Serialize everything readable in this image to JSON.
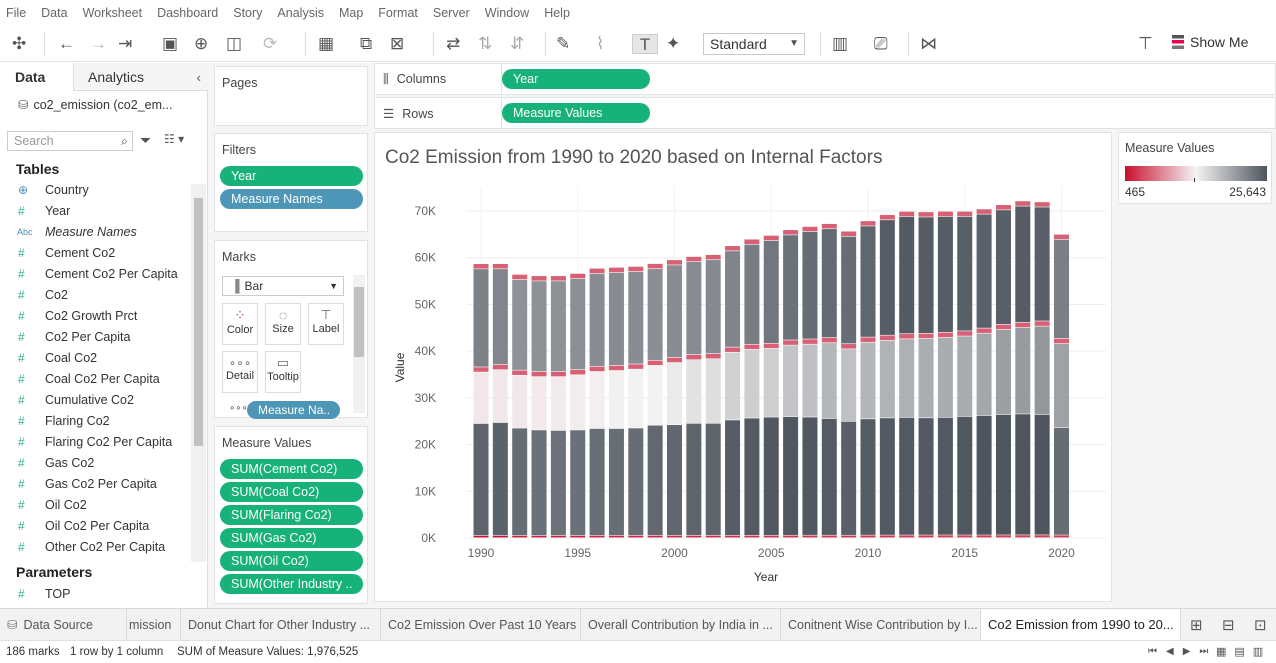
{
  "menu": [
    "File",
    "Data",
    "Worksheet",
    "Dashboard",
    "Story",
    "Analysis",
    "Map",
    "Format",
    "Server",
    "Window",
    "Help"
  ],
  "toolbar": {
    "fit_mode": "Standard",
    "show_me": "Show Me"
  },
  "left_pane": {
    "tab_data": "Data",
    "tab_analytics": "Analytics",
    "datasource": "co2_emission (co2_em...",
    "search_placeholder": "Search",
    "tables_header": "Tables",
    "fields": [
      {
        "type": "globe",
        "name": "Country"
      },
      {
        "type": "#",
        "name": "Year"
      },
      {
        "type": "Abc",
        "name": "Measure Names",
        "italic": true
      },
      {
        "type": "#",
        "name": "Cement Co2"
      },
      {
        "type": "#",
        "name": "Cement Co2 Per Capita"
      },
      {
        "type": "#",
        "name": "Co2"
      },
      {
        "type": "#",
        "name": "Co2 Growth Prct"
      },
      {
        "type": "#",
        "name": "Co2 Per Capita"
      },
      {
        "type": "#",
        "name": "Coal Co2"
      },
      {
        "type": "#",
        "name": "Coal Co2 Per Capita"
      },
      {
        "type": "#",
        "name": "Cumulative Co2"
      },
      {
        "type": "#",
        "name": "Flaring Co2"
      },
      {
        "type": "#",
        "name": "Flaring Co2 Per Capita"
      },
      {
        "type": "#",
        "name": "Gas Co2"
      },
      {
        "type": "#",
        "name": "Gas Co2 Per Capita"
      },
      {
        "type": "#",
        "name": "Oil Co2"
      },
      {
        "type": "#",
        "name": "Oil Co2 Per Capita"
      },
      {
        "type": "#",
        "name": "Other Co2 Per Capita"
      }
    ],
    "parameters_header": "Parameters",
    "parameters": [
      {
        "type": "#",
        "name": "TOP"
      }
    ]
  },
  "pages": {
    "title": "Pages"
  },
  "filters": {
    "title": "Filters",
    "items": [
      "Year",
      "Measure Names"
    ]
  },
  "marks": {
    "title": "Marks",
    "type": "Bar",
    "buttons": [
      "Color",
      "Size",
      "Label",
      "Detail",
      "Tooltip"
    ],
    "pill": "Measure Na.."
  },
  "measure_values": {
    "title": "Measure Values",
    "items": [
      "SUM(Cement Co2)",
      "SUM(Coal Co2)",
      "SUM(Flaring Co2)",
      "SUM(Gas Co2)",
      "SUM(Oil Co2)",
      "SUM(Other Industry .."
    ]
  },
  "columns": {
    "label": "Columns",
    "pill": "Year"
  },
  "rows": {
    "label": "Rows",
    "pill": "Measure Values"
  },
  "legend": {
    "title": "Measure Values",
    "min": "465",
    "max": "25,643",
    "colors": [
      "#c8102e",
      "#f4f4f4",
      "#4e555e"
    ]
  },
  "chart_data": {
    "type": "bar",
    "title": "Co2 Emission from 1990 to 2020 based on Internal Factors",
    "xlabel": "Year",
    "ylabel": "Value",
    "ylim": [
      0,
      73000
    ],
    "yticks": [
      0,
      10000,
      20000,
      30000,
      40000,
      50000,
      60000,
      70000
    ],
    "ytick_labels": [
      "0K",
      "10K",
      "20K",
      "30K",
      "40K",
      "50K",
      "60K",
      "70K"
    ],
    "xtick_years": [
      1990,
      1995,
      2000,
      2005,
      2010,
      2015,
      2020
    ],
    "categories": [
      1990,
      1991,
      1992,
      1993,
      1994,
      1995,
      1996,
      1997,
      1998,
      1999,
      2000,
      2001,
      2002,
      2003,
      2004,
      2005,
      2006,
      2007,
      2008,
      2009,
      2010,
      2011,
      2012,
      2013,
      2014,
      2015,
      2016,
      2017,
      2018,
      2019,
      2020
    ],
    "series": [
      {
        "name": "Flaring Co2",
        "values": [
          450,
          460,
          470,
          470,
          470,
          470,
          480,
          480,
          480,
          480,
          490,
          490,
          500,
          500,
          510,
          520,
          520,
          530,
          530,
          520,
          540,
          550,
          560,
          560,
          570,
          570,
          570,
          580,
          590,
          590,
          560
        ]
      },
      {
        "name": "Coal Co2",
        "values": [
          24000,
          24200,
          23000,
          22600,
          22500,
          22600,
          22900,
          22900,
          23000,
          23600,
          23700,
          24000,
          24000,
          24700,
          25100,
          25300,
          25400,
          25300,
          25000,
          24400,
          24900,
          25100,
          25200,
          25100,
          25200,
          25400,
          25600,
          25800,
          25900,
          25800,
          23000
        ]
      },
      {
        "name": "Gas Co2",
        "values": [
          11000,
          11300,
          11300,
          11400,
          11500,
          11800,
          12200,
          12400,
          12600,
          12800,
          13300,
          13600,
          13800,
          14500,
          14700,
          14700,
          15300,
          15600,
          16200,
          15500,
          16400,
          16600,
          16800,
          17000,
          17100,
          17200,
          17600,
          18200,
          18500,
          18900,
          18000
        ]
      },
      {
        "name": "Cement Co2",
        "values": [
          1100,
          1100,
          1100,
          1100,
          1100,
          1100,
          1100,
          1100,
          1100,
          1100,
          1100,
          1100,
          1100,
          1100,
          1100,
          1100,
          1100,
          1100,
          1100,
          1100,
          1100,
          1100,
          1100,
          1100,
          1100,
          1100,
          1100,
          1100,
          1100,
          1100,
          1100
        ]
      },
      {
        "name": "Oil Co2",
        "values": [
          21000,
          20500,
          19400,
          19400,
          19400,
          19500,
          19900,
          19900,
          19800,
          19600,
          19800,
          19900,
          20100,
          20600,
          21400,
          22000,
          22500,
          23000,
          23300,
          23000,
          23800,
          24700,
          25100,
          24900,
          24800,
          24500,
          24400,
          24500,
          24900,
          24400,
          21200
        ]
      },
      {
        "name": "Other Industry Co2",
        "values": [
          1100,
          1100,
          1100,
          1100,
          1100,
          1100,
          1100,
          1100,
          1100,
          1100,
          1100,
          1100,
          1100,
          1100,
          1100,
          1100,
          1100,
          1100,
          1100,
          1100,
          1100,
          1100,
          1100,
          1100,
          1100,
          1100,
          1100,
          1100,
          1100,
          1100,
          1100
        ]
      }
    ]
  },
  "sheet_tabs": {
    "data_source": "Data Source",
    "tabs": [
      "mission",
      "Donut Chart for Other Industry ...",
      "Co2 Emission Over Past 10 Years",
      "Overall Contribution by India in ...",
      "Conitnent Wise Contribution by I...",
      "Co2 Emission from 1990 to 20..."
    ]
  },
  "status": {
    "marks": "186 marks",
    "rows": "1 row by 1 column",
    "sum": "SUM of Measure Values: 1,976,525"
  }
}
